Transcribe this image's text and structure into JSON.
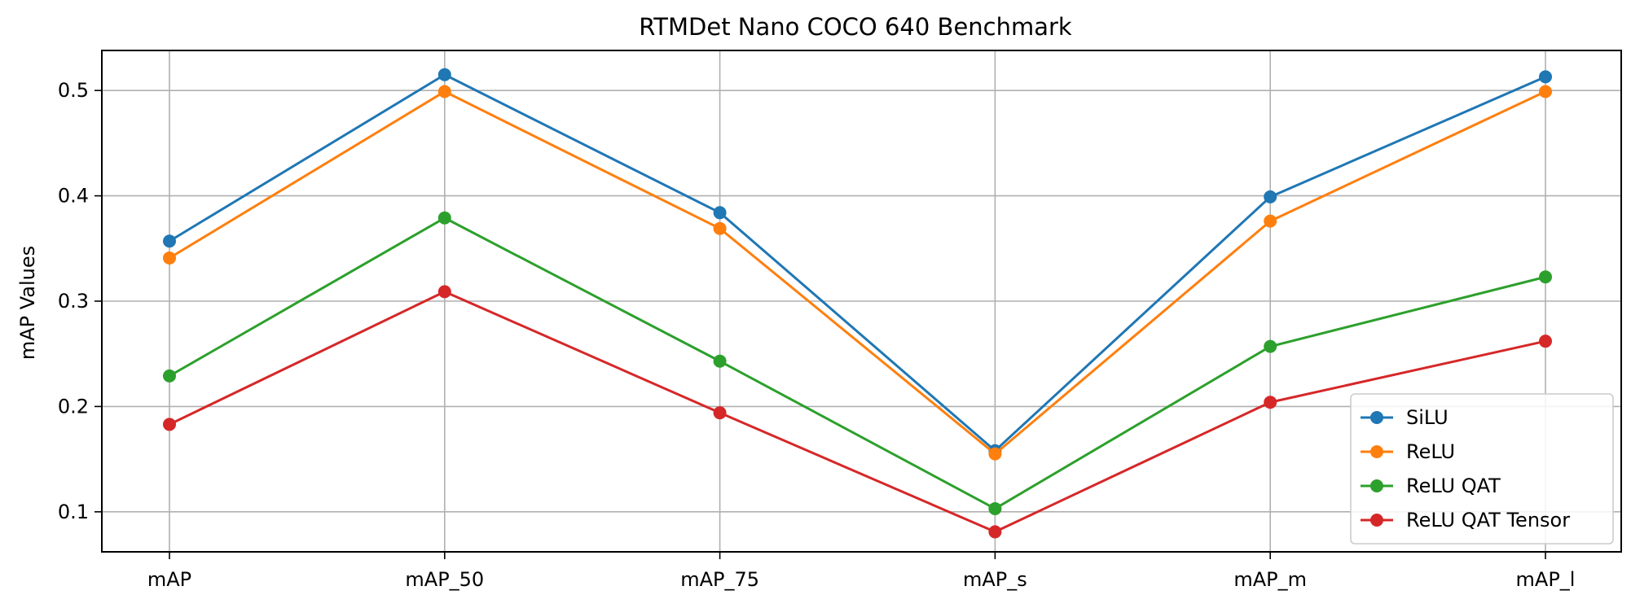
{
  "chart_data": {
    "type": "line",
    "title": "RTMDet Nano COCO 640 Benchmark",
    "xlabel": "",
    "ylabel": "mAP Values",
    "categories": [
      "mAP",
      "mAP_50",
      "mAP_75",
      "mAP_s",
      "mAP_m",
      "mAP_l"
    ],
    "ylim": [
      0.062,
      0.538
    ],
    "yticks": [
      0.1,
      0.2,
      0.3,
      0.4,
      0.5
    ],
    "ytick_labels": [
      "0.1",
      "0.2",
      "0.3",
      "0.4",
      "0.5"
    ],
    "grid": true,
    "legend_position": "lower-right",
    "series": [
      {
        "name": "SiLU",
        "color": "#1f77b4",
        "values": [
          0.357,
          0.515,
          0.384,
          0.158,
          0.399,
          0.513
        ]
      },
      {
        "name": "ReLU",
        "color": "#ff7f0e",
        "values": [
          0.341,
          0.499,
          0.369,
          0.155,
          0.376,
          0.499
        ]
      },
      {
        "name": "ReLU QAT",
        "color": "#2ca02c",
        "values": [
          0.229,
          0.379,
          0.243,
          0.103,
          0.257,
          0.323
        ]
      },
      {
        "name": "ReLU QAT Tensor",
        "color": "#d62728",
        "values": [
          0.183,
          0.309,
          0.194,
          0.081,
          0.204,
          0.262
        ]
      }
    ]
  }
}
